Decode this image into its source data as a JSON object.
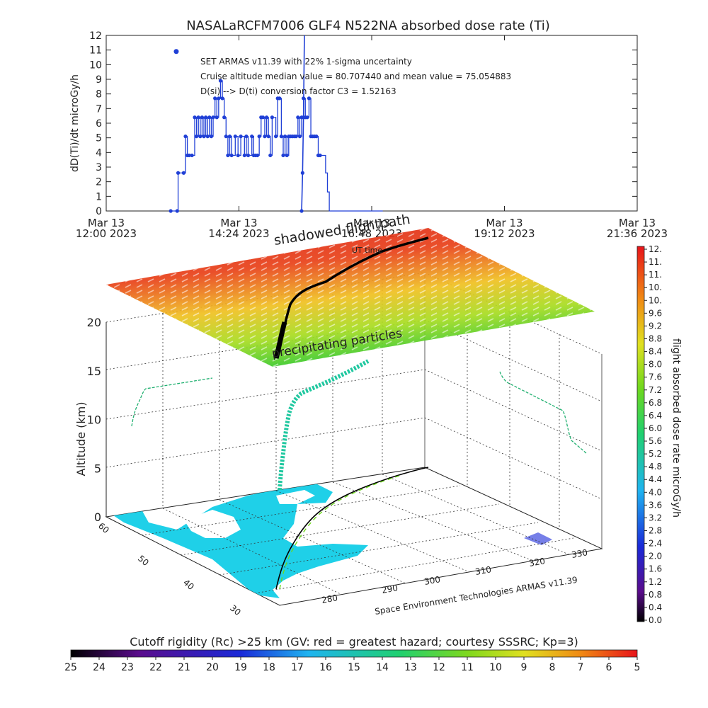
{
  "top_chart": {
    "title": "NASALaRCFM7006   GLF4 N522NA absorbed dose rate (Ti)",
    "ylabel": "dD(Ti)/dt microGy/h",
    "legend_lines": [
      "SET ARMAS v11.39 with 22% 1-sigma uncertainty",
      "Cruise altitude median value = 80.707440 and mean value = 75.054883",
      "D(si) --> D(ti) conversion factor C3 = 1.52163"
    ]
  },
  "chart_data": [
    {
      "type": "line",
      "title": "NASALaRCFM7006   GLF4 N522NA absorbed dose rate (Ti)",
      "xlabel": "",
      "ylabel": "dD(Ti)/dt microGy/h",
      "xlim": [
        0,
        576
      ],
      "ylim": [
        0,
        12
      ],
      "x_ticks": [
        {
          "x": 0,
          "line1": "Mar 13",
          "line2": "12:00 2023"
        },
        {
          "x": 144,
          "line1": "Mar 13",
          "line2": "14:24 2023"
        },
        {
          "x": 288,
          "line1": "Mar 13",
          "line2": "16:48 2023"
        },
        {
          "x": 432,
          "line1": "Mar 13",
          "line2": "19:12 2023"
        },
        {
          "x": 576,
          "line1": "Mar 13",
          "line2": "21:36 2023"
        }
      ],
      "y_ticks": [
        0,
        1,
        2,
        3,
        4,
        5,
        6,
        7,
        8,
        9,
        10,
        11,
        12
      ],
      "series": [
        {
          "color": "#1f3fd6",
          "x": [
            70,
            77,
            78,
            84,
            86,
            88,
            90,
            93,
            96,
            98,
            100,
            102,
            104,
            106,
            108,
            110,
            112,
            114,
            116,
            118,
            120,
            122,
            124,
            126,
            128,
            130,
            132,
            134,
            136,
            140,
            143,
            146,
            150,
            152,
            154,
            158,
            160,
            162,
            164,
            166,
            168,
            170,
            172,
            174,
            176,
            178,
            180,
            184,
            186,
            188,
            190,
            192,
            194,
            196,
            198,
            200,
            202,
            204,
            206,
            208,
            210,
            212,
            214,
            216,
            218,
            220,
            222,
            224,
            226,
            228,
            230,
            232,
            236,
            238,
            240,
            242,
            244,
            246,
            248,
            250,
            252,
            254,
            256,
            258,
            262,
            264,
            266,
            270,
            272,
            274,
            276,
            278,
            280,
            282,
            284,
            286,
            288,
            290,
            292,
            294,
            296,
            298,
            300
          ],
          "values": [
            0,
            0,
            2.6,
            2.6,
            5.1,
            3.8,
            3.8,
            3.8,
            6.4,
            5.1,
            6.4,
            5.1,
            6.4,
            5.1,
            6.4,
            5.1,
            6.4,
            5.1,
            6.4,
            7.7,
            6.4,
            7.7,
            8.9,
            7.7,
            6.4,
            5.1,
            3.8,
            5.1,
            3.8,
            5.1,
            3.8,
            5.1,
            3.8,
            5.1,
            3.8,
            5.1,
            3.8,
            3.8,
            3.8,
            5.1,
            6.4,
            6.4,
            5.1,
            6.4,
            5.1,
            3.8,
            6.4,
            5.1,
            7.7,
            7.7,
            5.1,
            3.8,
            5.1,
            3.8,
            5.1,
            5.1,
            5.1,
            5.1,
            5.1,
            6.4,
            5.1,
            6.4,
            7.7,
            6.4,
            6.4,
            7.7,
            5.1,
            5.1,
            5.1,
            5.1,
            3.8,
            3.8,
            3.8,
            2.6,
            1.3,
            0,
            0,
            0,
            0,
            0,
            0,
            0,
            0,
            0,
            0,
            0,
            0,
            0,
            0,
            0,
            0,
            0,
            0,
            0,
            0,
            0,
            0,
            0,
            0,
            0,
            0,
            0,
            0
          ],
          "tail_points": [
            [
              212,
              0
            ],
            [
              213,
              2.6
            ],
            [
              214,
              6.4
            ],
            [
              215,
              12
            ]
          ],
          "legend_marker": [
            76,
            10.9
          ]
        }
      ]
    },
    {
      "type": "scatter",
      "title": "",
      "zlabel": "Altitude (km)",
      "zlim": [
        0,
        22
      ],
      "z_ticks": [
        0,
        5,
        10,
        15,
        20
      ],
      "lat_ticks": [
        60,
        50,
        40,
        30
      ],
      "lon_ticks": [
        280,
        290,
        300,
        310,
        320,
        330
      ],
      "series": [
        {
          "name": "",
          "type": "3d-flight-track",
          "color_scale": "dose"
        }
      ]
    },
    {
      "type": "heatmap",
      "title": "Cutoff rigidity (Rc) >25 km (GV: red = greatest hazard; courtesy SSSRC; Kp=3)",
      "ticks": [
        25,
        24,
        23,
        22,
        21,
        20,
        19,
        18,
        17,
        16,
        15,
        14,
        13,
        12,
        11,
        10,
        9,
        8,
        7,
        6,
        5
      ]
    },
    {
      "type": "heatmap",
      "title": "flight absorbed dose rate microGy/h",
      "ticks": [
        "12.",
        "11.",
        "11.",
        "10.",
        "10.",
        "9.6",
        "9.2",
        "8.8",
        "8.4",
        "8.0",
        "7.6",
        "7.2",
        "6.8",
        "6.4",
        "6.0",
        "5.6",
        "5.2",
        "4.8",
        "4.4",
        "4.0",
        "3.6",
        "3.2",
        "2.8",
        "2.4",
        "2.0",
        "1.6",
        "1.2",
        "0.8",
        "0.4",
        "0.0"
      ]
    }
  ],
  "plot3d": {
    "zlabel": "Altitude (km)",
    "annotations": {
      "shadowed": "shadowed flightpath",
      "ut_time": "UT time",
      "precip": "precipitating particles",
      "credit": "Space Environment Technologies ARMAS v11.39"
    }
  },
  "colors": {
    "series_line": "#1f3fd6",
    "axis": "#222222",
    "sheet_high": "#d91a14",
    "sheet_mid": "#f0d020",
    "sheet_low": "#30c82c",
    "ocean": "#1fd0e8",
    "land": "#ffffff"
  },
  "right_colorbar": {
    "title": "flight absorbed dose rate microGy/h"
  },
  "bottom_colorbar": {
    "title": "Cutoff rigidity (Rc) >25 km (GV: red = greatest hazard; courtesy SSSRC; Kp=3)"
  }
}
